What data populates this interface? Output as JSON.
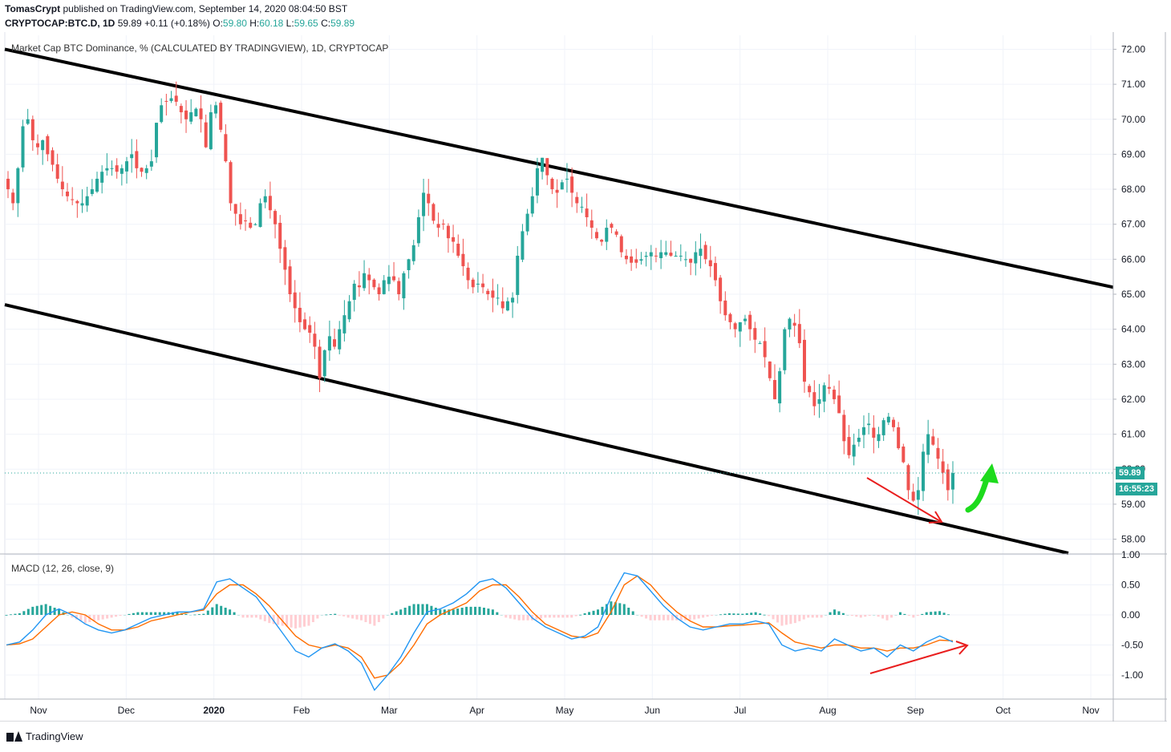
{
  "header": {
    "author": "TomasCrypt",
    "published": "published on TradingView.com, September 14, 2020 08:04:50 BST",
    "symbol": "CRYPTOCAP:BTC.D, 1D",
    "last": "59.89",
    "change": "+0.11 (+0.18%)",
    "o_label": "O:",
    "o": "59.80",
    "h_label": "H:",
    "h": "60.18",
    "l_label": "L:",
    "l": "59.65",
    "c_label": "C:",
    "c": "59.89"
  },
  "price_pane": {
    "title": "Market Cap BTC Dominance, % (CALCULATED BY TRADINGVIEW), 1D, CRYPTOCAP",
    "last_price_tag": "59.89",
    "countdown_tag": "16:55:23"
  },
  "macd_pane": {
    "title": "MACD (12, 26, close, 9)"
  },
  "footer": {
    "brand": "TradingView"
  },
  "colors": {
    "up": "#26a69a",
    "down": "#ef5350",
    "channel": "#000000",
    "macd": "#2196f3",
    "signal": "#ff6d00",
    "annotation_red": "#e91e1e",
    "annotation_green": "#1ddb1d"
  },
  "chart_data": [
    {
      "type": "candlestick",
      "title": "Market Cap BTC Dominance, % (CALCULATED BY TRADINGVIEW), 1D, CRYPTOCAP",
      "x_ticks": [
        "Nov",
        "Dec",
        "2020",
        "Feb",
        "Mar",
        "Apr",
        "May",
        "Jun",
        "Jul",
        "Aug",
        "Sep",
        "Oct",
        "Nov"
      ],
      "y_ticks": [
        "72.00",
        "71.00",
        "70.00",
        "69.00",
        "68.00",
        "67.00",
        "66.00",
        "65.00",
        "64.00",
        "63.00",
        "62.00",
        "61.00",
        "60.00",
        "59.00",
        "58.00"
      ],
      "ylim": [
        57.6,
        72.4
      ],
      "approx_closes": [
        68.0,
        67.6,
        68.6,
        69.8,
        70.0,
        69.4,
        69.2,
        69.4,
        69.0,
        68.7,
        68.3,
        68.0,
        67.8,
        67.7,
        67.6,
        67.6,
        67.8,
        68.0,
        68.3,
        68.5,
        68.6,
        68.6,
        68.5,
        68.6,
        68.8,
        69.0,
        68.6,
        68.5,
        68.6,
        68.8,
        69.9,
        70.4,
        70.5,
        70.6,
        70.5,
        70.2,
        70.0,
        70.2,
        70.3,
        70.0,
        69.2,
        70.2,
        70.4,
        69.7,
        68.8,
        67.6,
        67.3,
        67.0,
        67.1,
        66.9,
        67.0,
        67.6,
        67.8,
        67.4,
        67.0,
        66.3,
        65.7,
        65.0,
        64.6,
        64.2,
        64.0,
        63.9,
        63.5,
        62.6,
        63.4,
        63.8,
        63.5,
        64.0,
        64.4,
        64.8,
        65.3,
        65.2,
        65.6,
        65.4,
        65.2,
        65.0,
        65.4,
        65.5,
        65.4,
        65.0,
        65.6,
        66.0,
        66.4,
        67.2,
        67.9,
        67.6,
        67.1,
        66.9,
        67.0,
        66.6,
        66.5,
        66.1,
        65.8,
        65.4,
        65.2,
        65.3,
        65.2,
        65.0,
        64.9,
        64.9,
        64.6,
        64.8,
        64.9,
        66.1,
        66.8,
        67.3,
        67.8,
        68.6,
        68.9,
        68.4,
        68.0,
        67.9,
        68.2,
        68.3,
        67.9,
        67.6,
        67.5,
        67.2,
        66.9,
        66.6,
        66.5,
        66.9,
        66.9,
        66.7,
        66.2,
        66.0,
        65.9,
        65.9,
        66.0,
        66.1,
        66.2,
        66.1,
        66.2,
        66.2,
        66.1,
        66.1,
        66.1,
        66.0,
        65.9,
        66.2,
        66.3,
        66.0,
        65.8,
        65.4,
        64.8,
        64.4,
        64.2,
        64.0,
        64.2,
        64.3,
        64.0,
        63.7,
        63.6,
        63.2,
        62.6,
        62.0,
        62.8,
        64.0,
        64.3,
        64.1,
        63.6,
        62.5,
        62.2,
        61.8,
        62.0,
        62.4,
        62.3,
        62.0,
        61.6,
        60.8,
        60.4,
        60.7,
        60.9,
        61.2,
        61.3,
        60.9,
        61.0,
        61.4,
        61.5,
        61.2,
        60.6,
        60.2,
        59.4,
        59.1,
        59.4,
        60.5,
        61.0,
        60.7,
        60.3,
        59.9,
        59.4,
        59.89
      ],
      "channel_upper": [
        [
          0,
          72.0
        ],
        [
          1388,
          65.2
        ]
      ],
      "channel_lower": [
        [
          0,
          64.7
        ],
        [
          1332,
          57.6
        ]
      ],
      "last_value": 59.89
    },
    {
      "type": "line",
      "title": "MACD (12, 26, close, 9)",
      "y_ticks": [
        "1.00",
        "0.50",
        "0.00",
        "-0.50",
        "-1.00"
      ],
      "ylim": [
        -1.4,
        1.0
      ],
      "series": [
        {
          "name": "MACD",
          "values": [
            -0.5,
            -0.45,
            -0.25,
            0.0,
            0.1,
            0.0,
            -0.15,
            -0.25,
            -0.3,
            -0.25,
            -0.15,
            -0.05,
            0.0,
            0.05,
            0.05,
            0.1,
            0.55,
            0.6,
            0.45,
            0.3,
            0.0,
            -0.3,
            -0.6,
            -0.7,
            -0.55,
            -0.48,
            -0.6,
            -0.8,
            -1.25,
            -1.0,
            -0.7,
            -0.3,
            0.05,
            0.1,
            0.2,
            0.35,
            0.55,
            0.6,
            0.45,
            0.2,
            -0.05,
            -0.2,
            -0.3,
            -0.4,
            -0.35,
            -0.2,
            0.3,
            0.7,
            0.65,
            0.4,
            0.15,
            -0.05,
            -0.2,
            -0.25,
            -0.2,
            -0.15,
            -0.15,
            -0.1,
            -0.15,
            -0.5,
            -0.6,
            -0.55,
            -0.6,
            -0.4,
            -0.5,
            -0.6,
            -0.55,
            -0.7,
            -0.5,
            -0.6,
            -0.45,
            -0.35,
            -0.45
          ]
        },
        {
          "name": "Signal",
          "values": [
            -0.5,
            -0.48,
            -0.4,
            -0.2,
            0.0,
            0.05,
            0.0,
            -0.15,
            -0.25,
            -0.25,
            -0.2,
            -0.1,
            -0.05,
            0.0,
            0.05,
            0.08,
            0.35,
            0.5,
            0.5,
            0.35,
            0.15,
            -0.1,
            -0.35,
            -0.5,
            -0.55,
            -0.5,
            -0.55,
            -0.7,
            -1.05,
            -1.0,
            -0.8,
            -0.5,
            -0.15,
            0.0,
            0.1,
            0.2,
            0.4,
            0.5,
            0.5,
            0.3,
            0.05,
            -0.15,
            -0.25,
            -0.35,
            -0.38,
            -0.3,
            0.05,
            0.5,
            0.65,
            0.5,
            0.25,
            0.05,
            -0.1,
            -0.2,
            -0.2,
            -0.18,
            -0.17,
            -0.15,
            -0.13,
            -0.3,
            -0.45,
            -0.5,
            -0.55,
            -0.5,
            -0.5,
            -0.55,
            -0.55,
            -0.6,
            -0.55,
            -0.55,
            -0.5,
            -0.42,
            -0.43
          ]
        }
      ]
    }
  ]
}
